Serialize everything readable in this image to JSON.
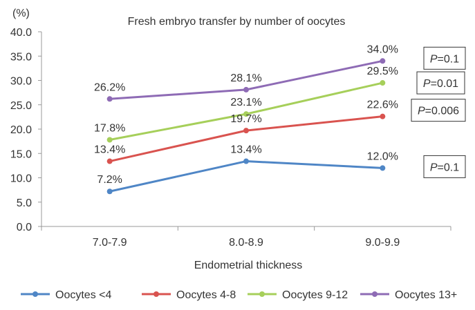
{
  "chart_data": {
    "type": "line",
    "title": "Fresh embryo transfer by number of oocytes",
    "unit_label": "(%)",
    "xlabel": "Endometrial thickness",
    "ylabel": "",
    "categories": [
      "7.0-7.9",
      "8.0-8.9",
      "9.0-9.9"
    ],
    "ylim": [
      0,
      40
    ],
    "yticks": [
      "0.0",
      "5.0",
      "10.0",
      "15.0",
      "20.0",
      "25.0",
      "30.0",
      "35.0",
      "40.0"
    ],
    "grid": false,
    "legend_position": "bottom",
    "series": [
      {
        "name": "Oocytes <4",
        "color": "#4f86c6",
        "values": [
          7.2,
          13.4,
          12.0
        ],
        "labels": [
          "7.2%",
          "13.4%",
          "12.0%"
        ],
        "p_italic": "P",
        "p_rest": "=0.1"
      },
      {
        "name": "Oocytes 4-8",
        "color": "#d9534f",
        "values": [
          13.4,
          19.7,
          22.6
        ],
        "labels": [
          "13.4%",
          "19.7%",
          "22.6%"
        ],
        "p_italic": "P",
        "p_rest": "=0.006"
      },
      {
        "name": "Oocytes 9-12",
        "color": "#a6cf5a",
        "values": [
          17.8,
          23.1,
          29.5
        ],
        "labels": [
          "17.8%",
          "23.1%",
          "29.5%"
        ],
        "p_italic": "P",
        "p_rest": "=0.01"
      },
      {
        "name": "Oocytes 13+",
        "color": "#8e6bb5",
        "values": [
          26.2,
          28.1,
          34.0
        ],
        "labels": [
          "26.2%",
          "28.1%",
          "34.0%"
        ],
        "p_italic": "P",
        "p_rest": "=0.1"
      }
    ]
  }
}
